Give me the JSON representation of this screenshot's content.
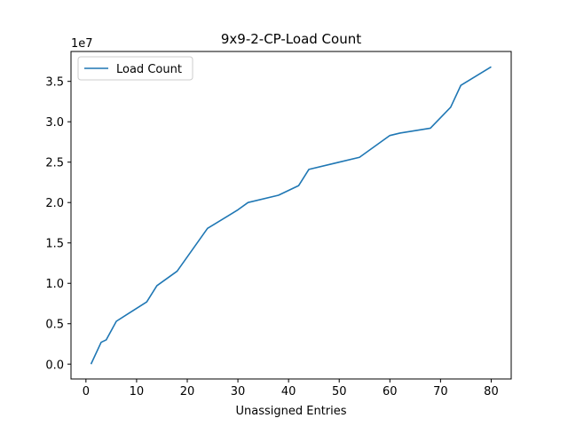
{
  "chart_data": {
    "type": "line",
    "title": "9x9-2-CP-Load Count",
    "xlabel": "Unassigned Entries",
    "ylabel": "",
    "y_offset_label": "1e7",
    "xlim": [
      -2.95,
      83.95
    ],
    "ylim": [
      -0.184,
      3.87
    ],
    "x_ticks": [
      0,
      10,
      20,
      30,
      40,
      50,
      60,
      70,
      80
    ],
    "x_tick_labels": [
      "0",
      "10",
      "20",
      "30",
      "40",
      "50",
      "60",
      "70",
      "80"
    ],
    "y_ticks": [
      0.0,
      0.5,
      1.0,
      1.5,
      2.0,
      2.5,
      3.0,
      3.5
    ],
    "y_tick_labels": [
      "0.0",
      "0.5",
      "1.0",
      "1.5",
      "2.0",
      "2.5",
      "3.0",
      "3.5"
    ],
    "legend": "top-left",
    "grid": false,
    "series": [
      {
        "name": "Load Count",
        "color": "#1f77b4",
        "x": [
          1,
          3,
          4,
          6,
          8,
          12,
          14,
          18,
          24,
          30,
          32,
          38,
          42,
          44,
          50,
          54,
          60,
          62,
          68,
          72,
          74,
          80
        ],
        "y": [
          0.0,
          0.27,
          0.3,
          0.53,
          0.61,
          0.77,
          0.97,
          1.15,
          1.68,
          1.91,
          2.0,
          2.09,
          2.21,
          2.41,
          2.5,
          2.56,
          2.83,
          2.86,
          2.92,
          3.18,
          3.45,
          3.68
        ]
      }
    ]
  }
}
